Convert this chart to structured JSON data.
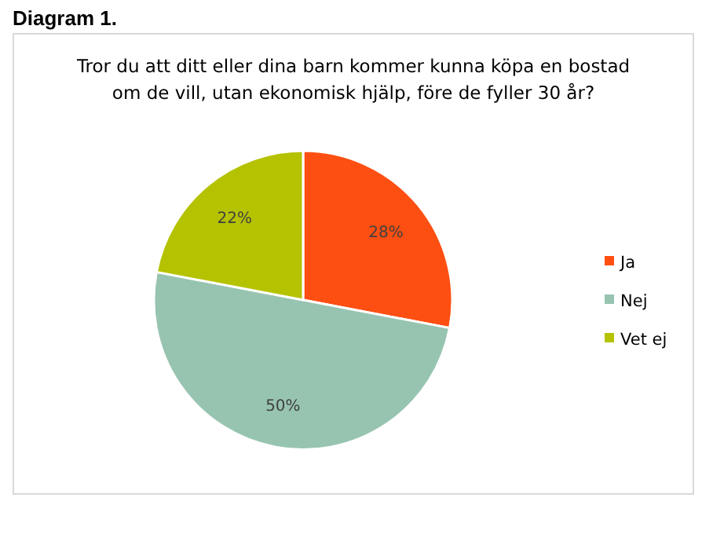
{
  "chart_data": {
    "type": "pie",
    "title": "Tror du att ditt eller dina barn kommer kunna köpa en bostad om de vill, utan ekonomisk hjälp, före de fyller 30 år?",
    "annotations": [
      "Diagram 1."
    ],
    "categories": [
      "Ja",
      "Nej",
      "Vet ej"
    ],
    "values": [
      28,
      50,
      22
    ],
    "colors": [
      "#fd4f12",
      "#97c4b0",
      "#b5c200"
    ],
    "value_labels": [
      "28%",
      "50%",
      "22%"
    ],
    "legend": "right"
  }
}
